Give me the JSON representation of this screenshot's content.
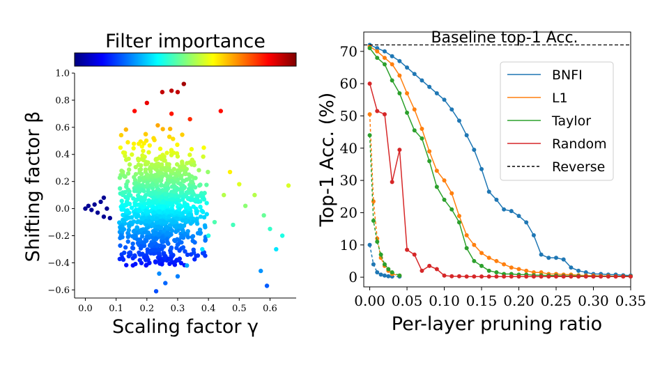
{
  "chart_data": [
    {
      "type": "scatter",
      "title": "Filter importance",
      "xlabel": "Scaling factor γ",
      "ylabel": "Shifting factor β",
      "xlim": [
        -0.035,
        0.685
      ],
      "ylim": [
        -0.66,
        1.0
      ],
      "xticks": [
        "0.0",
        "0.1",
        "0.2",
        "0.3",
        "0.4",
        "0.5",
        "0.6"
      ],
      "yticks": [
        "1.0",
        "0.8",
        "0.6",
        "0.4",
        "0.2",
        "0.0",
        "−0.2",
        "−0.4",
        "−0.6"
      ],
      "colormap": "jet",
      "colormap_colors": [
        "#00007f",
        "#0000ff",
        "#007fff",
        "#00ffff",
        "#7fff7f",
        "#ffff00",
        "#ff7f00",
        "#ff0000",
        "#7f0000"
      ],
      "cluster_points": [
        [
          0.0,
          0.0
        ],
        [
          0.01,
          0.02
        ],
        [
          0.02,
          -0.01
        ],
        [
          0.03,
          0.03
        ],
        [
          0.04,
          -0.03
        ],
        [
          0.05,
          0.05
        ],
        [
          0.06,
          -0.06
        ],
        [
          0.07,
          0.0
        ],
        [
          0.08,
          -0.07
        ],
        [
          0.06,
          0.08
        ]
      ],
      "outlier_points": [
        [
          0.16,
          0.72
        ],
        [
          0.2,
          0.78
        ],
        [
          0.25,
          0.86
        ],
        [
          0.28,
          0.87
        ],
        [
          0.3,
          0.86
        ],
        [
          0.32,
          0.92
        ],
        [
          0.44,
          0.72
        ],
        [
          0.34,
          0.66
        ],
        [
          0.28,
          0.7
        ],
        [
          0.47,
          0.27
        ],
        [
          0.5,
          0.18
        ],
        [
          0.55,
          0.1
        ],
        [
          0.58,
          -0.05
        ],
        [
          0.6,
          -0.15
        ],
        [
          0.62,
          -0.3
        ],
        [
          0.57,
          -0.46
        ],
        [
          0.59,
          -0.57
        ],
        [
          0.66,
          0.17
        ],
        [
          0.64,
          -0.2
        ],
        [
          0.52,
          0.02
        ],
        [
          0.45,
          0.1
        ],
        [
          0.42,
          -0.1
        ],
        [
          0.4,
          -0.2
        ],
        [
          0.38,
          -0.3
        ],
        [
          0.33,
          -0.42
        ],
        [
          0.3,
          -0.5
        ],
        [
          0.26,
          -0.55
        ],
        [
          0.23,
          -0.61
        ],
        [
          0.24,
          -0.48
        ],
        [
          0.48,
          -0.12
        ]
      ],
      "main_cluster": {
        "center": [
          0.24,
          0.0
        ],
        "spread": [
          0.1,
          0.22
        ],
        "count": 1100
      }
    },
    {
      "type": "line",
      "xlabel": "Per-layer pruning ratio",
      "ylabel": "Top-1 Acc. (%)",
      "xlim": [
        -0.008,
        0.35
      ],
      "ylim": [
        -3,
        76
      ],
      "xticks": [
        "0.00",
        "0.05",
        "0.10",
        "0.15",
        "0.20",
        "0.25",
        "0.30",
        "0.35"
      ],
      "yticks": [
        "0",
        "10",
        "20",
        "30",
        "40",
        "50",
        "60",
        "70"
      ],
      "baseline": {
        "value": 72,
        "label": "Baseline top-1 Acc."
      },
      "series": [
        {
          "name": "BNFI",
          "color": "#1f77b4",
          "style": "solid",
          "x": [
            0,
            0.01,
            0.02,
            0.03,
            0.04,
            0.05,
            0.06,
            0.07,
            0.08,
            0.09,
            0.1,
            0.11,
            0.12,
            0.13,
            0.14,
            0.15,
            0.16,
            0.17,
            0.18,
            0.19,
            0.2,
            0.21,
            0.22,
            0.23,
            0.24,
            0.25,
            0.26,
            0.27,
            0.28,
            0.29,
            0.3,
            0.31,
            0.32,
            0.33,
            0.34,
            0.35
          ],
          "y": [
            72,
            71,
            70,
            68.5,
            67,
            65,
            63,
            61,
            59,
            57,
            55,
            52,
            48.5,
            44,
            39.5,
            33.5,
            26.5,
            24,
            21,
            20.5,
            19,
            17,
            13,
            7,
            6,
            6,
            5.5,
            3,
            2,
            1.5,
            1,
            1,
            0.8,
            0.8,
            0.6,
            0.5
          ]
        },
        {
          "name": "L1",
          "color": "#ff7f0e",
          "style": "solid",
          "x": [
            0,
            0.01,
            0.02,
            0.03,
            0.04,
            0.05,
            0.06,
            0.07,
            0.08,
            0.09,
            0.1,
            0.11,
            0.12,
            0.13,
            0.14,
            0.15,
            0.16,
            0.17,
            0.18,
            0.19,
            0.2,
            0.21,
            0.22,
            0.23,
            0.24,
            0.25,
            0.26,
            0.27,
            0.28,
            0.29,
            0.3,
            0.31,
            0.32,
            0.33,
            0.34,
            0.35
          ],
          "y": [
            71.5,
            70,
            68,
            66,
            62.5,
            57,
            52,
            46,
            39,
            33,
            30,
            26,
            19,
            13,
            10,
            7.5,
            6,
            5,
            4,
            3,
            2.5,
            2,
            1.5,
            1.5,
            1,
            1,
            0.8,
            0.8,
            0.6,
            0.5,
            0.5,
            0.4,
            0.4,
            0.3,
            0.3,
            0.3
          ]
        },
        {
          "name": "Taylor",
          "color": "#2ca02c",
          "style": "solid",
          "x": [
            0,
            0.01,
            0.02,
            0.03,
            0.04,
            0.05,
            0.06,
            0.07,
            0.08,
            0.09,
            0.1,
            0.11,
            0.12,
            0.13,
            0.14,
            0.15,
            0.16,
            0.17,
            0.18,
            0.19,
            0.2,
            0.21,
            0.22,
            0.23,
            0.24,
            0.25,
            0.26,
            0.27,
            0.28,
            0.29,
            0.3,
            0.31,
            0.32,
            0.33,
            0.34,
            0.35
          ],
          "y": [
            71,
            68,
            66,
            61,
            57,
            51,
            45.5,
            43,
            36,
            28,
            24,
            21,
            17,
            9,
            5,
            3.5,
            2,
            1.5,
            1,
            1,
            0.8,
            0.8,
            0.6,
            0.6,
            0.5,
            0.5,
            0.4,
            0.4,
            0.4,
            0.3,
            0.3,
            0.3,
            0.3,
            0.3,
            0.3,
            0.3
          ]
        },
        {
          "name": "Random",
          "color": "#d62728",
          "style": "solid",
          "x": [
            0,
            0.01,
            0.02,
            0.03,
            0.04,
            0.05,
            0.06,
            0.07,
            0.08,
            0.09,
            0.1,
            0.11,
            0.12,
            0.13,
            0.14,
            0.15,
            0.16,
            0.17,
            0.18,
            0.19,
            0.2,
            0.21,
            0.22,
            0.23,
            0.24,
            0.25,
            0.26,
            0.27,
            0.28,
            0.29,
            0.3,
            0.31,
            0.32,
            0.33,
            0.34,
            0.35
          ],
          "y": [
            60,
            51.5,
            50.5,
            29.5,
            39.5,
            8.5,
            7,
            2,
            3.5,
            2.5,
            0.5,
            0.3,
            0.3,
            0.2,
            0.2,
            0.2,
            0.2,
            0.2,
            0.2,
            0.2,
            0.2,
            0.2,
            0.2,
            0.2,
            0.2,
            0.2,
            0.2,
            0.2,
            0.2,
            0.2,
            0.2,
            0.2,
            0.2,
            0.2,
            0.2,
            0.2
          ]
        },
        {
          "name": "Reverse",
          "color": "#000000",
          "style": "dashed",
          "legend_only": true
        }
      ],
      "reverse_series": [
        {
          "color": "#1f77b4",
          "x": [
            0,
            0.005,
            0.01,
            0.015,
            0.02,
            0.025,
            0.03,
            0.04
          ],
          "y": [
            10,
            4,
            1.5,
            0.8,
            0.5,
            0.3,
            0.2,
            0.2
          ]
        },
        {
          "color": "#ff7f0e",
          "x": [
            0,
            0.005,
            0.01,
            0.015,
            0.02,
            0.025,
            0.03,
            0.04
          ],
          "y": [
            50.5,
            23.5,
            12,
            6,
            3.5,
            2,
            1,
            0.5
          ]
        },
        {
          "color": "#2ca02c",
          "x": [
            0,
            0.005,
            0.01,
            0.015,
            0.02,
            0.025,
            0.03,
            0.04
          ],
          "y": [
            44,
            17.5,
            11,
            7,
            4,
            2.5,
            1.5,
            0.5
          ]
        }
      ]
    }
  ]
}
